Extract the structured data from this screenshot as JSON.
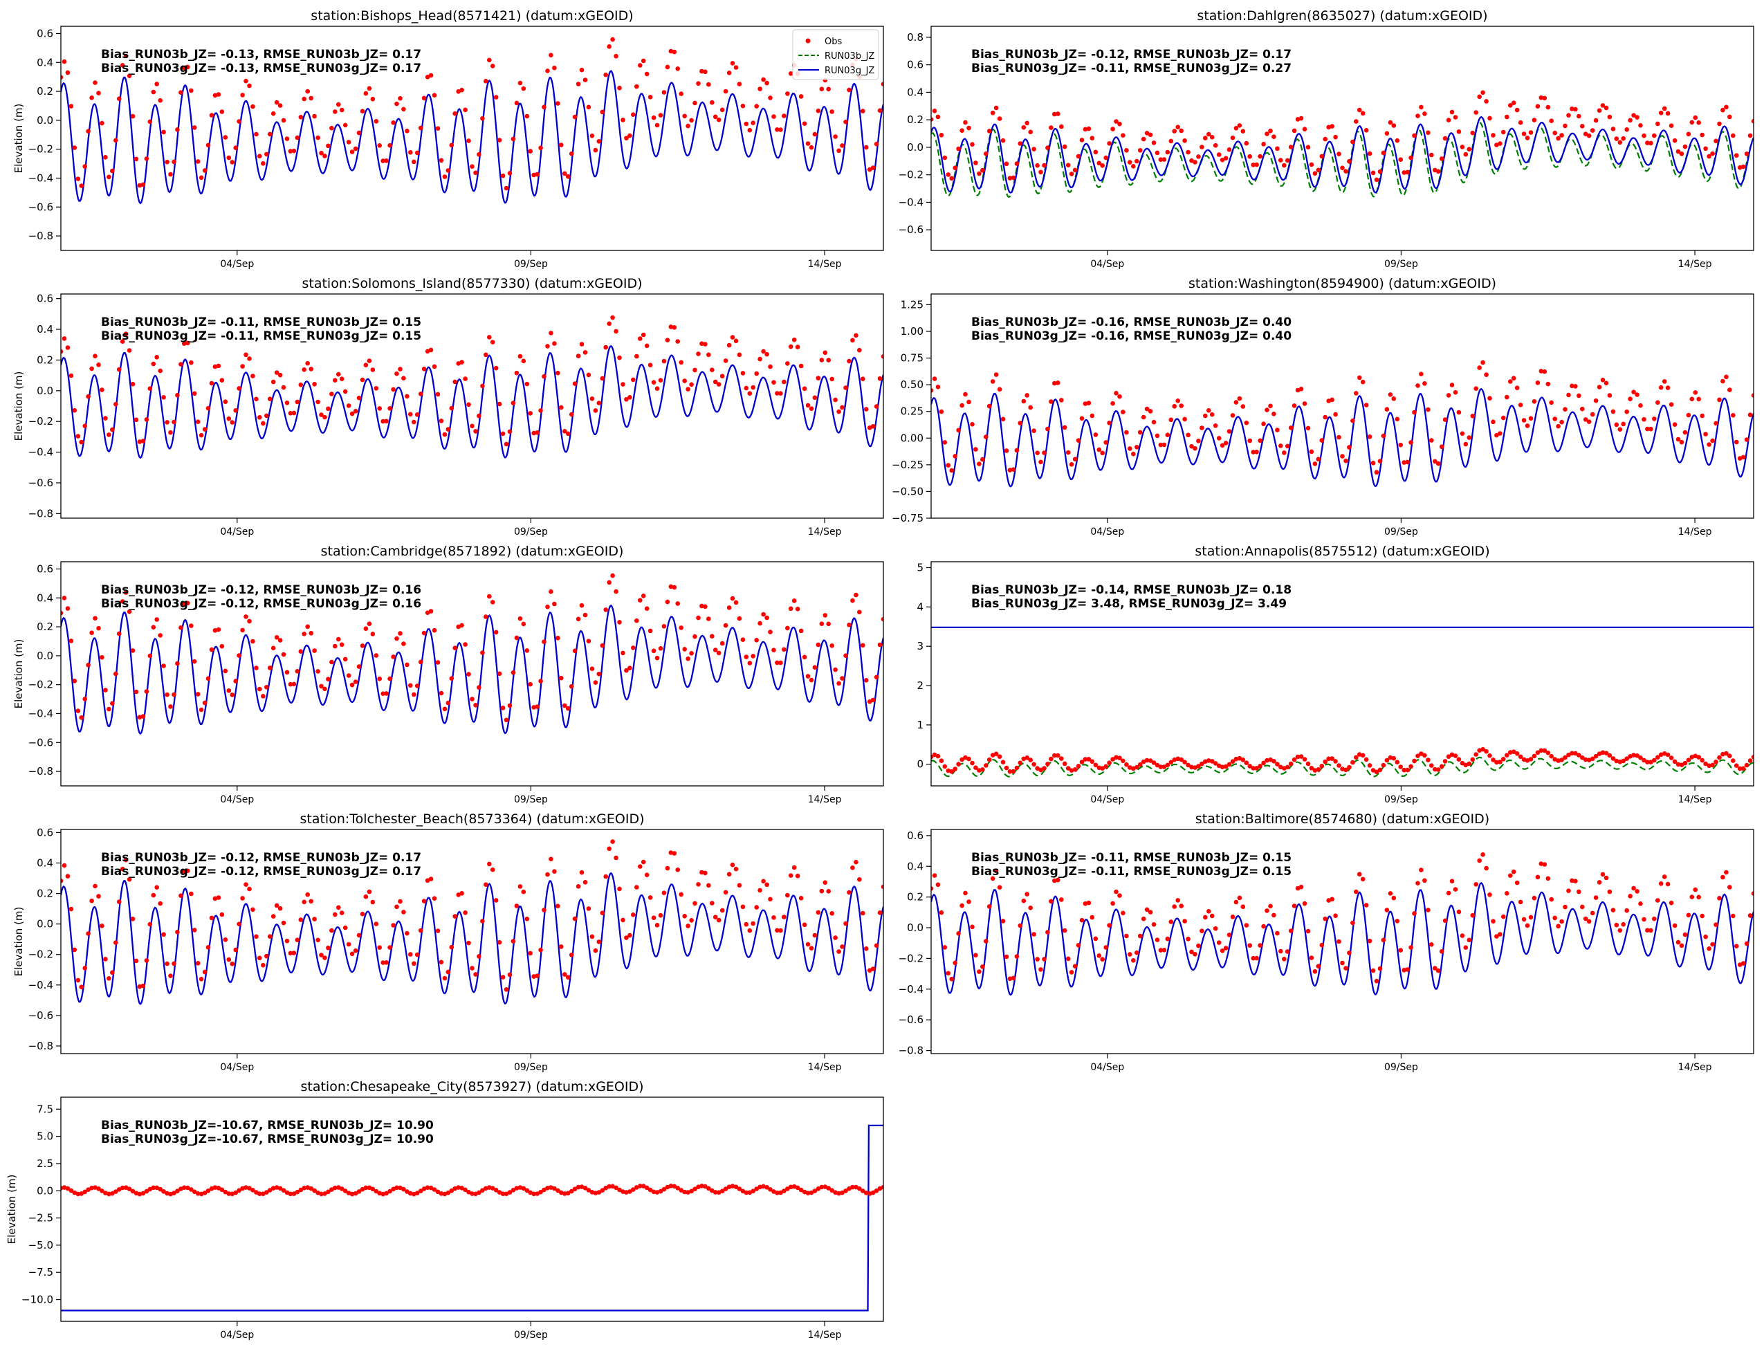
{
  "figure": {
    "legend": {
      "entries": [
        {
          "label": "Obs",
          "color": "#ff0000",
          "style": "dots"
        },
        {
          "label": "RUN03b_JZ",
          "color": "#008000",
          "style": "dashed"
        },
        {
          "label": "RUN03g_JZ",
          "color": "#0000cd",
          "style": "solid"
        }
      ],
      "placement": "top-right of first panel"
    }
  },
  "chart_data": [
    {
      "type": "line",
      "title": "station:Bishops_Head(8571421) (datum:xGEOID)",
      "ylabel": "Elevation (m)",
      "ylim": [
        -0.9,
        0.65
      ],
      "yticks": [
        -0.8,
        -0.6,
        -0.4,
        -0.2,
        0.0,
        0.2,
        0.4,
        0.6
      ],
      "ytick_labels": [
        "−0.8",
        "−0.6",
        "−0.4",
        "−0.2",
        "0.0",
        "0.2",
        "0.4",
        "0.6"
      ],
      "xlim_days": [
        1.0,
        15.0
      ],
      "xticks": [
        4,
        9,
        14
      ],
      "xtick_labels": [
        "04/Sep",
        "09/Sep",
        "14/Sep"
      ],
      "stats": [
        "Bias_RUN03b_JZ= -0.13, RMSE_RUN03b_JZ=  0.17",
        "Bias_RUN03g_JZ= -0.13, RMSE_RUN03g_JZ=  0.17"
      ],
      "model": {
        "base": -0.17,
        "amp": 0.28,
        "surge": 0.15,
        "flat": null
      },
      "obs_offset": 0.13,
      "run03b_distinct": false,
      "show_legend": true
    },
    {
      "type": "line",
      "title": "station:Dahlgren(8635027) (datum:xGEOID)",
      "ylabel": "",
      "ylim": [
        -0.75,
        0.88
      ],
      "yticks": [
        -0.6,
        -0.4,
        -0.2,
        0.0,
        0.2,
        0.4,
        0.6,
        0.8
      ],
      "ytick_labels": [
        "−0.6",
        "−0.4",
        "−0.2",
        "0.0",
        "0.2",
        "0.4",
        "0.6",
        "0.8"
      ],
      "xlim_days": [
        1.0,
        15.0
      ],
      "xticks": [
        4,
        9,
        14
      ],
      "xtick_labels": [
        "04/Sep",
        "09/Sep",
        "14/Sep"
      ],
      "stats": [
        "Bias_RUN03b_JZ= -0.12, RMSE_RUN03b_JZ=  0.17",
        "Bias_RUN03g_JZ= -0.11, RMSE_RUN03g_JZ=  0.27"
      ],
      "model": {
        "base": -0.1,
        "amp": 0.16,
        "surge": 0.12,
        "flat": null
      },
      "obs_offset": 0.11,
      "run03b_distinct": true,
      "show_legend": false
    },
    {
      "type": "line",
      "title": "station:Solomons_Island(8577330) (datum:xGEOID)",
      "ylabel": "Elevation (m)",
      "ylim": [
        -0.83,
        0.63
      ],
      "yticks": [
        -0.8,
        -0.6,
        -0.4,
        -0.2,
        0.0,
        0.2,
        0.4,
        0.6
      ],
      "ytick_labels": [
        "−0.8",
        "−0.6",
        "−0.4",
        "−0.2",
        "0.0",
        "0.2",
        "0.4",
        "0.6"
      ],
      "xlim_days": [
        1.0,
        15.0
      ],
      "xticks": [
        4,
        9,
        14
      ],
      "xtick_labels": [
        "04/Sep",
        "09/Sep",
        "14/Sep"
      ],
      "stats": [
        "Bias_RUN03b_JZ= -0.11, RMSE_RUN03b_JZ=  0.15",
        "Bias_RUN03g_JZ= -0.11, RMSE_RUN03g_JZ=  0.15"
      ],
      "model": {
        "base": -0.12,
        "amp": 0.22,
        "surge": 0.13,
        "flat": null
      },
      "obs_offset": 0.11,
      "run03b_distinct": false,
      "show_legend": false
    },
    {
      "type": "line",
      "title": "station:Washington(8594900) (datum:xGEOID)",
      "ylabel": "",
      "ylim": [
        -0.75,
        1.35
      ],
      "yticks": [
        -0.75,
        -0.5,
        -0.25,
        0.0,
        0.25,
        0.5,
        0.75,
        1.0,
        1.25
      ],
      "ytick_labels": [
        "−0.75",
        "−0.50",
        "−0.25",
        "0.00",
        "0.25",
        "0.50",
        "0.75",
        "1.00",
        "1.25"
      ],
      "xlim_days": [
        1.0,
        15.0
      ],
      "xticks": [
        4,
        9,
        14
      ],
      "xtick_labels": [
        "04/Sep",
        "09/Sep",
        "14/Sep"
      ],
      "stats": [
        "Bias_RUN03b_JZ= -0.16, RMSE_RUN03b_JZ=  0.40",
        "Bias_RUN03g_JZ= -0.16, RMSE_RUN03g_JZ=  0.40"
      ],
      "model": {
        "base": -0.05,
        "amp": 0.28,
        "surge": 0.15,
        "flat": null
      },
      "obs_offset": 0.16,
      "run03b_distinct": false,
      "show_legend": false
    },
    {
      "type": "line",
      "title": "station:Cambridge(8571892) (datum:xGEOID)",
      "ylabel": "Elevation (m)",
      "ylim": [
        -0.9,
        0.65
      ],
      "yticks": [
        -0.8,
        -0.6,
        -0.4,
        -0.2,
        0.0,
        0.2,
        0.4,
        0.6
      ],
      "ytick_labels": [
        "−0.8",
        "−0.6",
        "−0.4",
        "−0.2",
        "0.0",
        "0.2",
        "0.4",
        "0.6"
      ],
      "xlim_days": [
        1.0,
        15.0
      ],
      "xticks": [
        4,
        9,
        14
      ],
      "xtick_labels": [
        "04/Sep",
        "09/Sep",
        "14/Sep"
      ],
      "stats": [
        "Bias_RUN03b_JZ= -0.12, RMSE_RUN03b_JZ=  0.16",
        "Bias_RUN03g_JZ= -0.12, RMSE_RUN03g_JZ=  0.16"
      ],
      "model": {
        "base": -0.15,
        "amp": 0.27,
        "surge": 0.15,
        "flat": null
      },
      "obs_offset": 0.12,
      "run03b_distinct": false,
      "show_legend": false
    },
    {
      "type": "line",
      "title": "station:Annapolis(8575512) (datum:xGEOID)",
      "ylabel": "",
      "ylim": [
        -0.55,
        5.15
      ],
      "yticks": [
        0,
        1,
        2,
        3,
        4,
        5
      ],
      "ytick_labels": [
        "0",
        "1",
        "2",
        "3",
        "4",
        "5"
      ],
      "xlim_days": [
        1.0,
        15.0
      ],
      "xticks": [
        4,
        9,
        14
      ],
      "xtick_labels": [
        "04/Sep",
        "09/Sep",
        "14/Sep"
      ],
      "stats": [
        "Bias_RUN03b_JZ= -0.14, RMSE_RUN03b_JZ=  0.18",
        "Bias_RUN03g_JZ=  3.48, RMSE_RUN03g_JZ=  3.49"
      ],
      "model": {
        "base": -0.12,
        "amp": 0.14,
        "surge": 0.12,
        "flat": 3.48
      },
      "obs_offset": 0.14,
      "run03b_distinct": true,
      "show_legend": false
    },
    {
      "type": "line",
      "title": "station:Tolchester_Beach(8573364) (datum:xGEOID)",
      "ylabel": "Elevation (m)",
      "ylim": [
        -0.85,
        0.62
      ],
      "yticks": [
        -0.8,
        -0.6,
        -0.4,
        -0.2,
        0.0,
        0.2,
        0.4,
        0.6
      ],
      "ytick_labels": [
        "−0.8",
        "−0.6",
        "−0.4",
        "−0.2",
        "0.0",
        "0.2",
        "0.4",
        "0.6"
      ],
      "xlim_days": [
        1.0,
        15.0
      ],
      "xticks": [
        4,
        9,
        14
      ],
      "xtick_labels": [
        "04/Sep",
        "09/Sep",
        "14/Sep"
      ],
      "stats": [
        "Bias_RUN03b_JZ= -0.12, RMSE_RUN03b_JZ=  0.17",
        "Bias_RUN03g_JZ= -0.12, RMSE_RUN03g_JZ=  0.17"
      ],
      "model": {
        "base": -0.15,
        "amp": 0.26,
        "surge": 0.15,
        "flat": null
      },
      "obs_offset": 0.12,
      "run03b_distinct": false,
      "show_legend": false
    },
    {
      "type": "line",
      "title": "station:Baltimore(8574680) (datum:xGEOID)",
      "ylabel": "",
      "ylim": [
        -0.82,
        0.64
      ],
      "yticks": [
        -0.8,
        -0.6,
        -0.4,
        -0.2,
        0.0,
        0.2,
        0.4,
        0.6
      ],
      "ytick_labels": [
        "−0.8",
        "−0.6",
        "−0.4",
        "−0.2",
        "0.0",
        "0.2",
        "0.4",
        "0.6"
      ],
      "xlim_days": [
        1.0,
        15.0
      ],
      "xticks": [
        4,
        9,
        14
      ],
      "xtick_labels": [
        "04/Sep",
        "09/Sep",
        "14/Sep"
      ],
      "stats": [
        "Bias_RUN03b_JZ= -0.11, RMSE_RUN03b_JZ=  0.15",
        "Bias_RUN03g_JZ= -0.11, RMSE_RUN03g_JZ=  0.15"
      ],
      "model": {
        "base": -0.12,
        "amp": 0.22,
        "surge": 0.13,
        "flat": null
      },
      "obs_offset": 0.11,
      "run03b_distinct": false,
      "show_legend": false
    },
    {
      "type": "line",
      "title": "station:Chesapeake_City(8573927) (datum:xGEOID)",
      "ylabel": "Elevation (m)",
      "ylim": [
        -12.0,
        8.6
      ],
      "yticks": [
        -10.0,
        -7.5,
        -5.0,
        -2.5,
        0.0,
        2.5,
        5.0,
        7.5
      ],
      "ytick_labels": [
        "−10.0",
        "−7.5",
        "−5.0",
        "−2.5",
        "0.0",
        "2.5",
        "5.0",
        "7.5"
      ],
      "xlim_days": [
        1.0,
        15.0
      ],
      "xticks": [
        4,
        9,
        14
      ],
      "xtick_labels": [
        "04/Sep",
        "09/Sep",
        "14/Sep"
      ],
      "stats": [
        "Bias_RUN03b_JZ=-10.67, RMSE_RUN03b_JZ= 10.90",
        "Bias_RUN03g_JZ=-10.67, RMSE_RUN03g_JZ= 10.90"
      ],
      "model": {
        "base": -11.0,
        "amp": 0.0,
        "surge": 0.0,
        "flat": null,
        "step_day": 14.75,
        "step_value": 6.0
      },
      "obs_offset": 0.0,
      "obs_amp": 0.3,
      "run03b_distinct": false,
      "show_legend": false
    }
  ]
}
